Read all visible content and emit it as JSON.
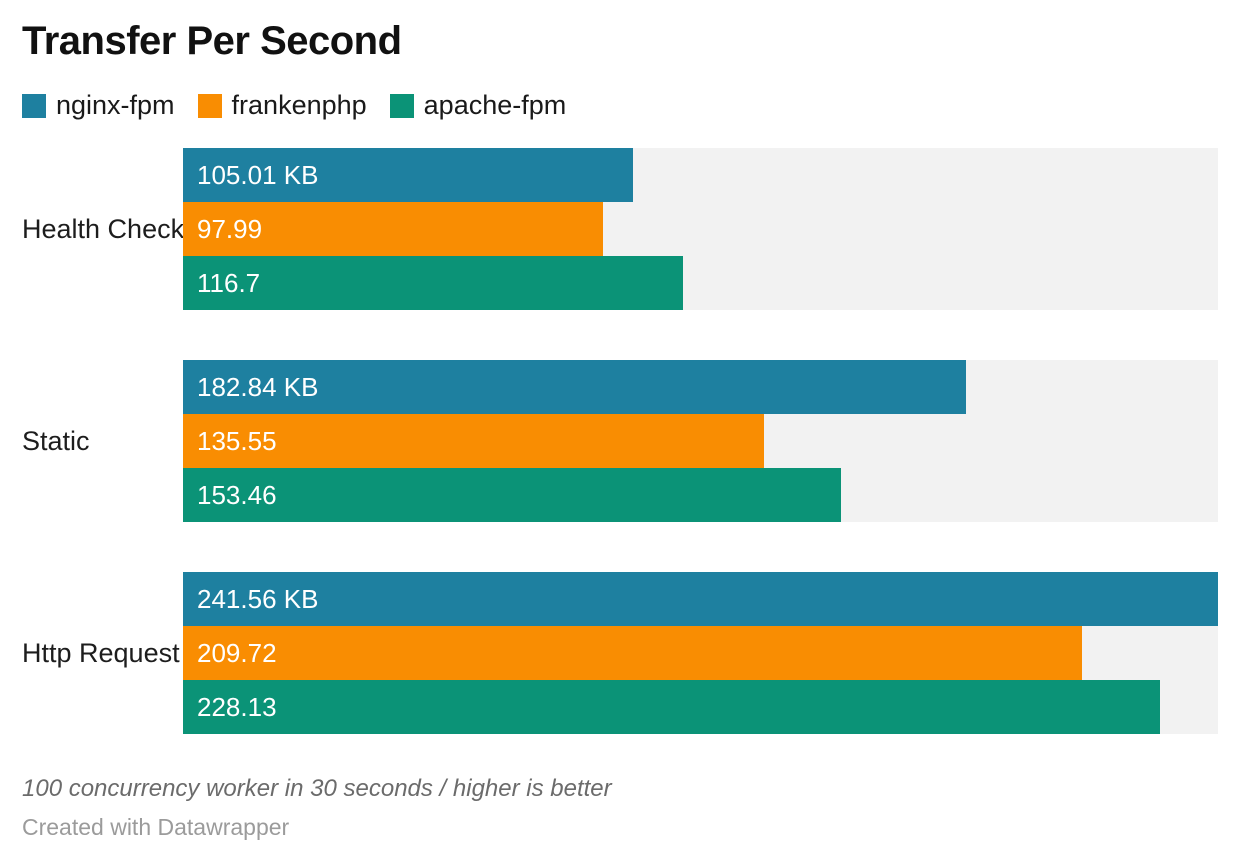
{
  "header": {
    "title": "Transfer Per Second"
  },
  "legend": [
    {
      "label": "nginx-fpm",
      "color": "#1e80a0"
    },
    {
      "label": "frankenphp",
      "color": "#f98d02"
    },
    {
      "label": "apache-fpm",
      "color": "#0b9377"
    }
  ],
  "chart_data": {
    "type": "bar",
    "orientation": "horizontal",
    "title": "Transfer Per Second",
    "categories": [
      "Health Check",
      "Static",
      "Http Request"
    ],
    "series": [
      {
        "name": "nginx-fpm",
        "color": "#1e80a0",
        "values": [
          105.01,
          182.84,
          241.56
        ],
        "value_labels": [
          "105.01 KB",
          "182.84 KB",
          "241.56 KB"
        ]
      },
      {
        "name": "frankenphp",
        "color": "#f98d02",
        "values": [
          97.99,
          135.55,
          209.72
        ],
        "value_labels": [
          "97.99",
          "135.55",
          "209.72"
        ]
      },
      {
        "name": "apache-fpm",
        "color": "#0b9377",
        "values": [
          116.7,
          153.46,
          228.13
        ],
        "value_labels": [
          "116.7",
          "153.46",
          "228.13"
        ]
      }
    ],
    "xlim": [
      0,
      241.56
    ],
    "unit": "KB",
    "grid": false,
    "legend_position": "top",
    "track_color": "#f2f2f2",
    "value_label_position": "inside-left",
    "note": "100 concurrency worker in 30 seconds / higher is better"
  },
  "footer": {
    "note": "100 concurrency worker in 30 seconds / higher is better",
    "credit": "Created with Datawrapper"
  }
}
